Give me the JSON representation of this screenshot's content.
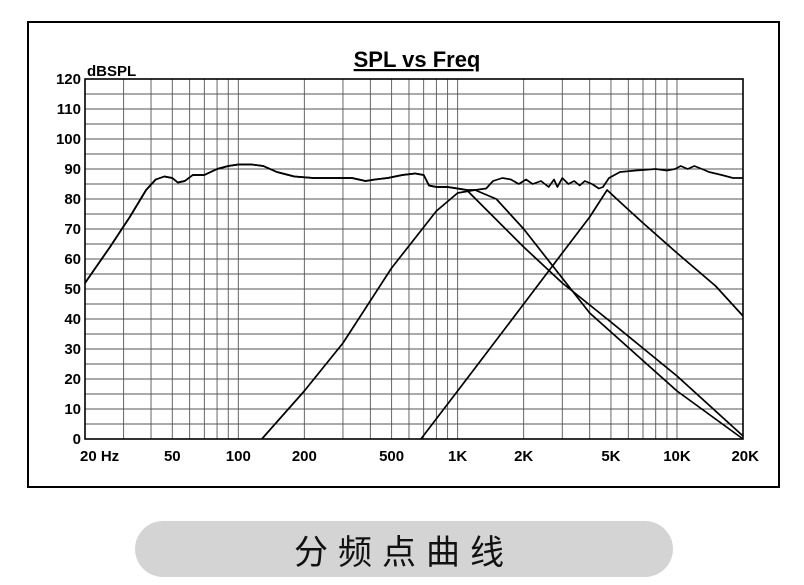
{
  "chart_data": {
    "type": "line",
    "title": "SPL vs Freq",
    "ylabel": "dBSPL",
    "xlabel": "",
    "xscale": "log",
    "xlim": [
      20,
      20000
    ],
    "ylim": [
      0,
      120
    ],
    "grid": true,
    "legend": "none",
    "x_tick_labels": [
      {
        "value": 20,
        "label": "20  Hz"
      },
      {
        "value": 50,
        "label": "50"
      },
      {
        "value": 100,
        "label": "100"
      },
      {
        "value": 200,
        "label": "200"
      },
      {
        "value": 500,
        "label": "500"
      },
      {
        "value": 1000,
        "label": "1K"
      },
      {
        "value": 2000,
        "label": "2K"
      },
      {
        "value": 5000,
        "label": "5K"
      },
      {
        "value": 10000,
        "label": "10K"
      },
      {
        "value": 20000,
        "label": "20K"
      }
    ],
    "y_ticks": [
      0,
      10,
      20,
      30,
      40,
      50,
      60,
      70,
      80,
      90,
      100,
      110,
      120
    ],
    "series": [
      {
        "role": "combined",
        "points": [
          [
            20,
            52
          ],
          [
            26,
            64
          ],
          [
            32,
            74
          ],
          [
            38,
            83
          ],
          [
            42,
            86.5
          ],
          [
            46,
            87.5
          ],
          [
            50,
            87
          ],
          [
            53,
            85.5
          ],
          [
            57,
            86
          ],
          [
            62,
            88
          ],
          [
            70,
            88
          ],
          [
            80,
            90
          ],
          [
            90,
            91
          ],
          [
            100,
            91.5
          ],
          [
            115,
            91.5
          ],
          [
            130,
            91
          ],
          [
            150,
            89
          ],
          [
            180,
            87.5
          ],
          [
            220,
            87
          ],
          [
            280,
            87
          ],
          [
            330,
            87
          ],
          [
            380,
            86
          ],
          [
            420,
            86.5
          ],
          [
            480,
            87
          ],
          [
            560,
            88
          ],
          [
            640,
            88.5
          ],
          [
            700,
            88
          ],
          [
            740,
            84.5
          ],
          [
            800,
            84
          ],
          [
            900,
            84
          ],
          [
            1000,
            83.5
          ],
          [
            1100,
            83
          ],
          [
            1200,
            83
          ],
          [
            1350,
            83.5
          ],
          [
            1450,
            86
          ],
          [
            1600,
            87
          ],
          [
            1750,
            86.5
          ],
          [
            1900,
            85
          ],
          [
            2050,
            86.5
          ],
          [
            2200,
            85
          ],
          [
            2400,
            86
          ],
          [
            2600,
            84
          ],
          [
            2750,
            86.5
          ],
          [
            2850,
            84
          ],
          [
            3000,
            87
          ],
          [
            3200,
            85
          ],
          [
            3400,
            86
          ],
          [
            3600,
            84.5
          ],
          [
            3800,
            86
          ],
          [
            4100,
            85
          ],
          [
            4400,
            83.5
          ],
          [
            4600,
            84
          ],
          [
            4900,
            87
          ],
          [
            5500,
            89
          ],
          [
            6500,
            89.5
          ],
          [
            8000,
            90
          ],
          [
            9000,
            89.5
          ],
          [
            9800,
            90
          ],
          [
            10400,
            91
          ],
          [
            11200,
            90
          ],
          [
            12000,
            91
          ],
          [
            13000,
            90
          ],
          [
            14000,
            89
          ],
          [
            16000,
            88
          ],
          [
            18000,
            87
          ],
          [
            20000,
            87
          ]
        ]
      },
      {
        "role": "woofer",
        "points": [
          [
            20,
            52
          ],
          [
            26,
            64
          ],
          [
            32,
            74
          ],
          [
            38,
            83
          ],
          [
            42,
            86.5
          ],
          [
            46,
            87.5
          ],
          [
            50,
            87
          ],
          [
            53,
            85.5
          ],
          [
            57,
            86
          ],
          [
            62,
            88
          ],
          [
            70,
            88
          ],
          [
            80,
            90
          ],
          [
            90,
            91
          ],
          [
            100,
            91.5
          ],
          [
            115,
            91.5
          ],
          [
            130,
            91
          ],
          [
            150,
            89
          ],
          [
            180,
            87.5
          ],
          [
            220,
            87
          ],
          [
            280,
            87
          ],
          [
            330,
            87
          ],
          [
            380,
            86
          ],
          [
            420,
            86.5
          ],
          [
            480,
            87
          ],
          [
            560,
            88
          ],
          [
            640,
            88.5
          ],
          [
            700,
            88
          ],
          [
            740,
            84.5
          ],
          [
            800,
            84
          ],
          [
            900,
            84
          ],
          [
            1000,
            83.5
          ],
          [
            1100,
            83
          ],
          [
            2000,
            64
          ],
          [
            3000,
            52
          ],
          [
            5000,
            39
          ],
          [
            10000,
            21
          ],
          [
            20000,
            1
          ]
        ]
      },
      {
        "role": "midrange",
        "points": [
          [
            128,
            0
          ],
          [
            200,
            16
          ],
          [
            300,
            32
          ],
          [
            500,
            57
          ],
          [
            800,
            76
          ],
          [
            1000,
            82
          ],
          [
            1200,
            83
          ],
          [
            1500,
            80
          ],
          [
            2000,
            70
          ],
          [
            4000,
            42
          ],
          [
            10000,
            16
          ],
          [
            20000,
            0
          ]
        ]
      },
      {
        "role": "tweeter",
        "points": [
          [
            680,
            0
          ],
          [
            1000,
            16
          ],
          [
            2000,
            45
          ],
          [
            3000,
            62
          ],
          [
            4000,
            74
          ],
          [
            4800,
            83
          ],
          [
            5500,
            79
          ],
          [
            7000,
            72
          ],
          [
            10000,
            62
          ],
          [
            15000,
            51
          ],
          [
            20000,
            41
          ]
        ]
      }
    ]
  },
  "caption": "分频点曲线"
}
